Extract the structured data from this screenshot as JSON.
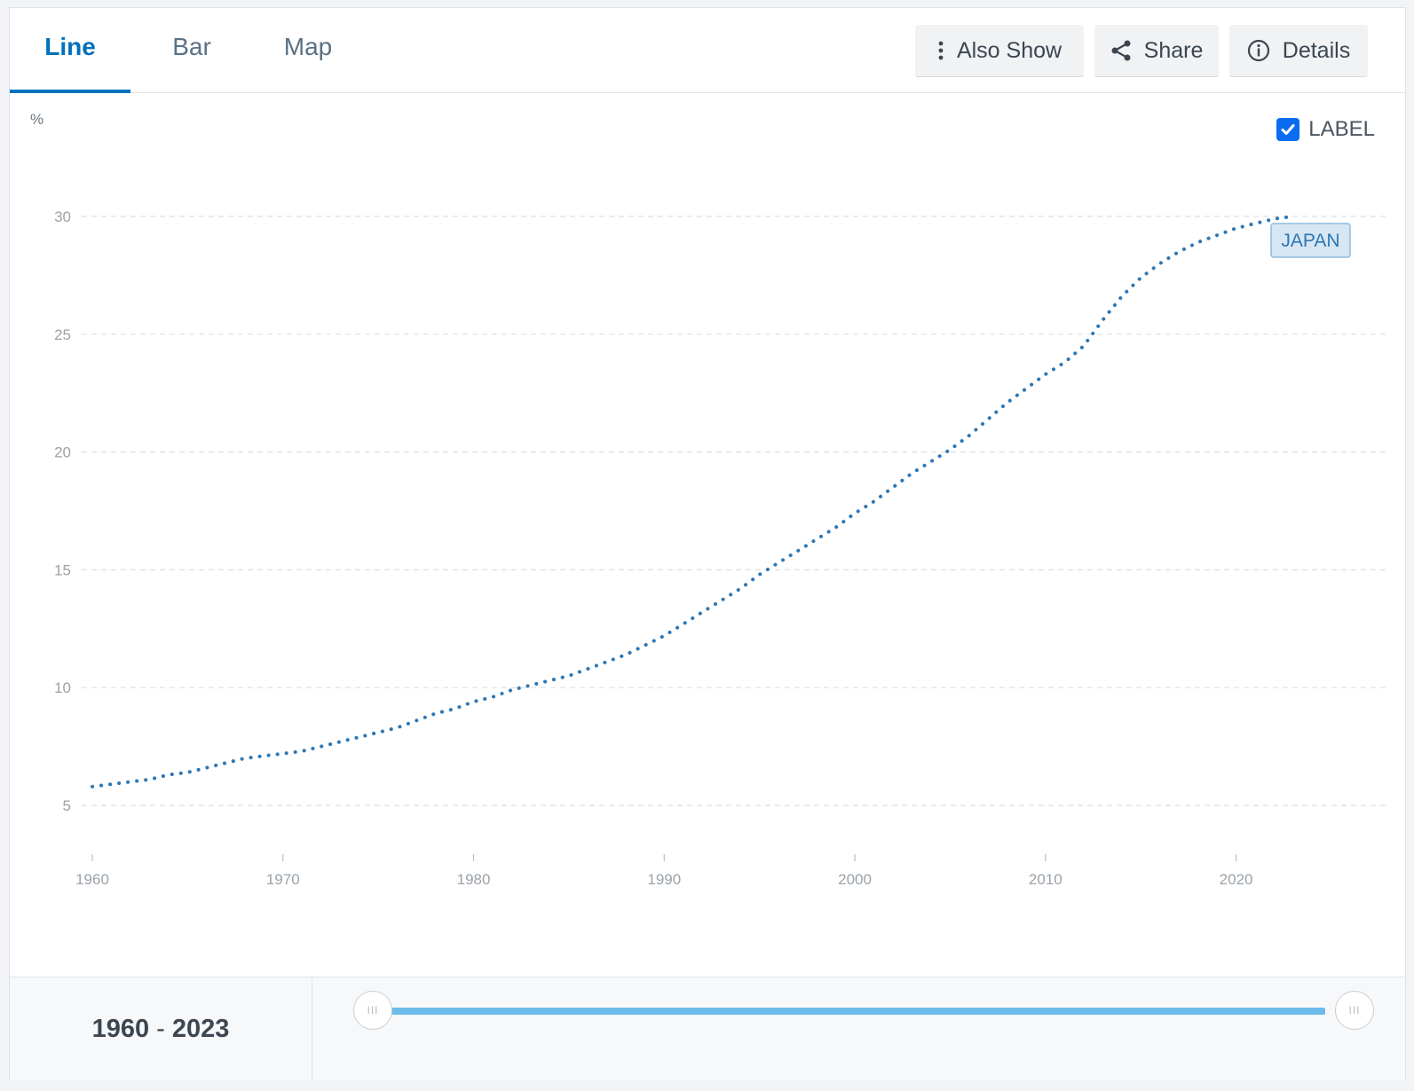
{
  "tabs": [
    {
      "label": "Line",
      "active": true
    },
    {
      "label": "Bar",
      "active": false
    },
    {
      "label": "Map",
      "active": false
    }
  ],
  "toolbar": {
    "also_show": "Also Show",
    "share": "Share",
    "details": "Details"
  },
  "label_toggle": {
    "label": "LABEL",
    "checked": true
  },
  "range": {
    "start": "1960",
    "separator": "-",
    "end": "2023"
  },
  "slider": {
    "handle_glyph": "III",
    "min": 1960,
    "max": 2023,
    "selected": [
      1960,
      2023
    ]
  },
  "colors": {
    "accent": "#0071bc",
    "series": "#2d77b4",
    "slider": "#6cbbea",
    "checkbox": "#0a6cf0"
  },
  "chart_data": {
    "type": "line",
    "ylabel": "%",
    "xlim": [
      1960,
      2023
    ],
    "ylim": [
      3,
      31
    ],
    "yticks": [
      5,
      10,
      15,
      20,
      25,
      30
    ],
    "xticks": [
      1960,
      1970,
      1980,
      1990,
      2000,
      2010,
      2020
    ],
    "grid": "horizontal dashed",
    "line_style": "dotted",
    "series": [
      {
        "name": "JAPAN",
        "x": [
          1960,
          1961,
          1962,
          1963,
          1964,
          1965,
          1966,
          1967,
          1968,
          1969,
          1970,
          1971,
          1972,
          1973,
          1974,
          1975,
          1976,
          1977,
          1978,
          1979,
          1980,
          1981,
          1982,
          1983,
          1984,
          1985,
          1986,
          1987,
          1988,
          1989,
          1990,
          1991,
          1992,
          1993,
          1994,
          1995,
          1996,
          1997,
          1998,
          1999,
          2000,
          2001,
          2002,
          2003,
          2004,
          2005,
          2006,
          2007,
          2008,
          2009,
          2010,
          2011,
          2012,
          2013,
          2014,
          2015,
          2016,
          2017,
          2018,
          2019,
          2020,
          2021,
          2022,
          2023
        ],
        "values": [
          5.8,
          5.9,
          6.0,
          6.1,
          6.3,
          6.4,
          6.6,
          6.8,
          7.0,
          7.1,
          7.2,
          7.3,
          7.5,
          7.7,
          7.9,
          8.1,
          8.3,
          8.6,
          8.9,
          9.1,
          9.4,
          9.6,
          9.9,
          10.1,
          10.3,
          10.5,
          10.8,
          11.1,
          11.4,
          11.8,
          12.2,
          12.7,
          13.2,
          13.7,
          14.2,
          14.8,
          15.3,
          15.8,
          16.3,
          16.8,
          17.4,
          17.9,
          18.5,
          19.1,
          19.6,
          20.1,
          20.7,
          21.4,
          22.1,
          22.7,
          23.3,
          23.8,
          24.5,
          25.6,
          26.6,
          27.4,
          28.0,
          28.5,
          28.9,
          29.2,
          29.5,
          29.7,
          29.9,
          30.0
        ]
      }
    ]
  }
}
